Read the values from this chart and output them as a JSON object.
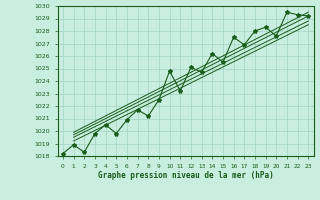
{
  "title": "Graphe pression niveau de la mer (hPa)",
  "x_labels": [
    "0",
    "1",
    "2",
    "3",
    "4",
    "5",
    "6",
    "7",
    "8",
    "9",
    "10",
    "11",
    "12",
    "13",
    "14",
    "15",
    "16",
    "17",
    "18",
    "19",
    "20",
    "21",
    "22",
    "23"
  ],
  "main_color": "#1a5c1a",
  "bg_color": "#c8eee0",
  "grid_color": "#a0d4c0",
  "ylim": [
    1018,
    1030
  ],
  "yticks": [
    1018,
    1019,
    1020,
    1021,
    1022,
    1023,
    1024,
    1025,
    1026,
    1027,
    1028,
    1029,
    1030
  ],
  "pressure": [
    1018.2,
    1018.9,
    1018.3,
    1019.8,
    1020.5,
    1019.8,
    1020.9,
    1021.7,
    1021.2,
    1022.5,
    1024.8,
    1023.2,
    1025.1,
    1024.7,
    1026.2,
    1025.5,
    1027.5,
    1026.9,
    1028.0,
    1028.3,
    1027.6,
    1029.5,
    1029.3,
    1029.2
  ],
  "trend_lines": [
    [
      1,
      1019.9,
      23,
      1029.5
    ],
    [
      1,
      1019.7,
      23,
      1029.2
    ],
    [
      1,
      1019.5,
      23,
      1028.8
    ],
    [
      1,
      1019.2,
      23,
      1028.5
    ]
  ],
  "figwidth": 3.2,
  "figheight": 2.0,
  "dpi": 100
}
